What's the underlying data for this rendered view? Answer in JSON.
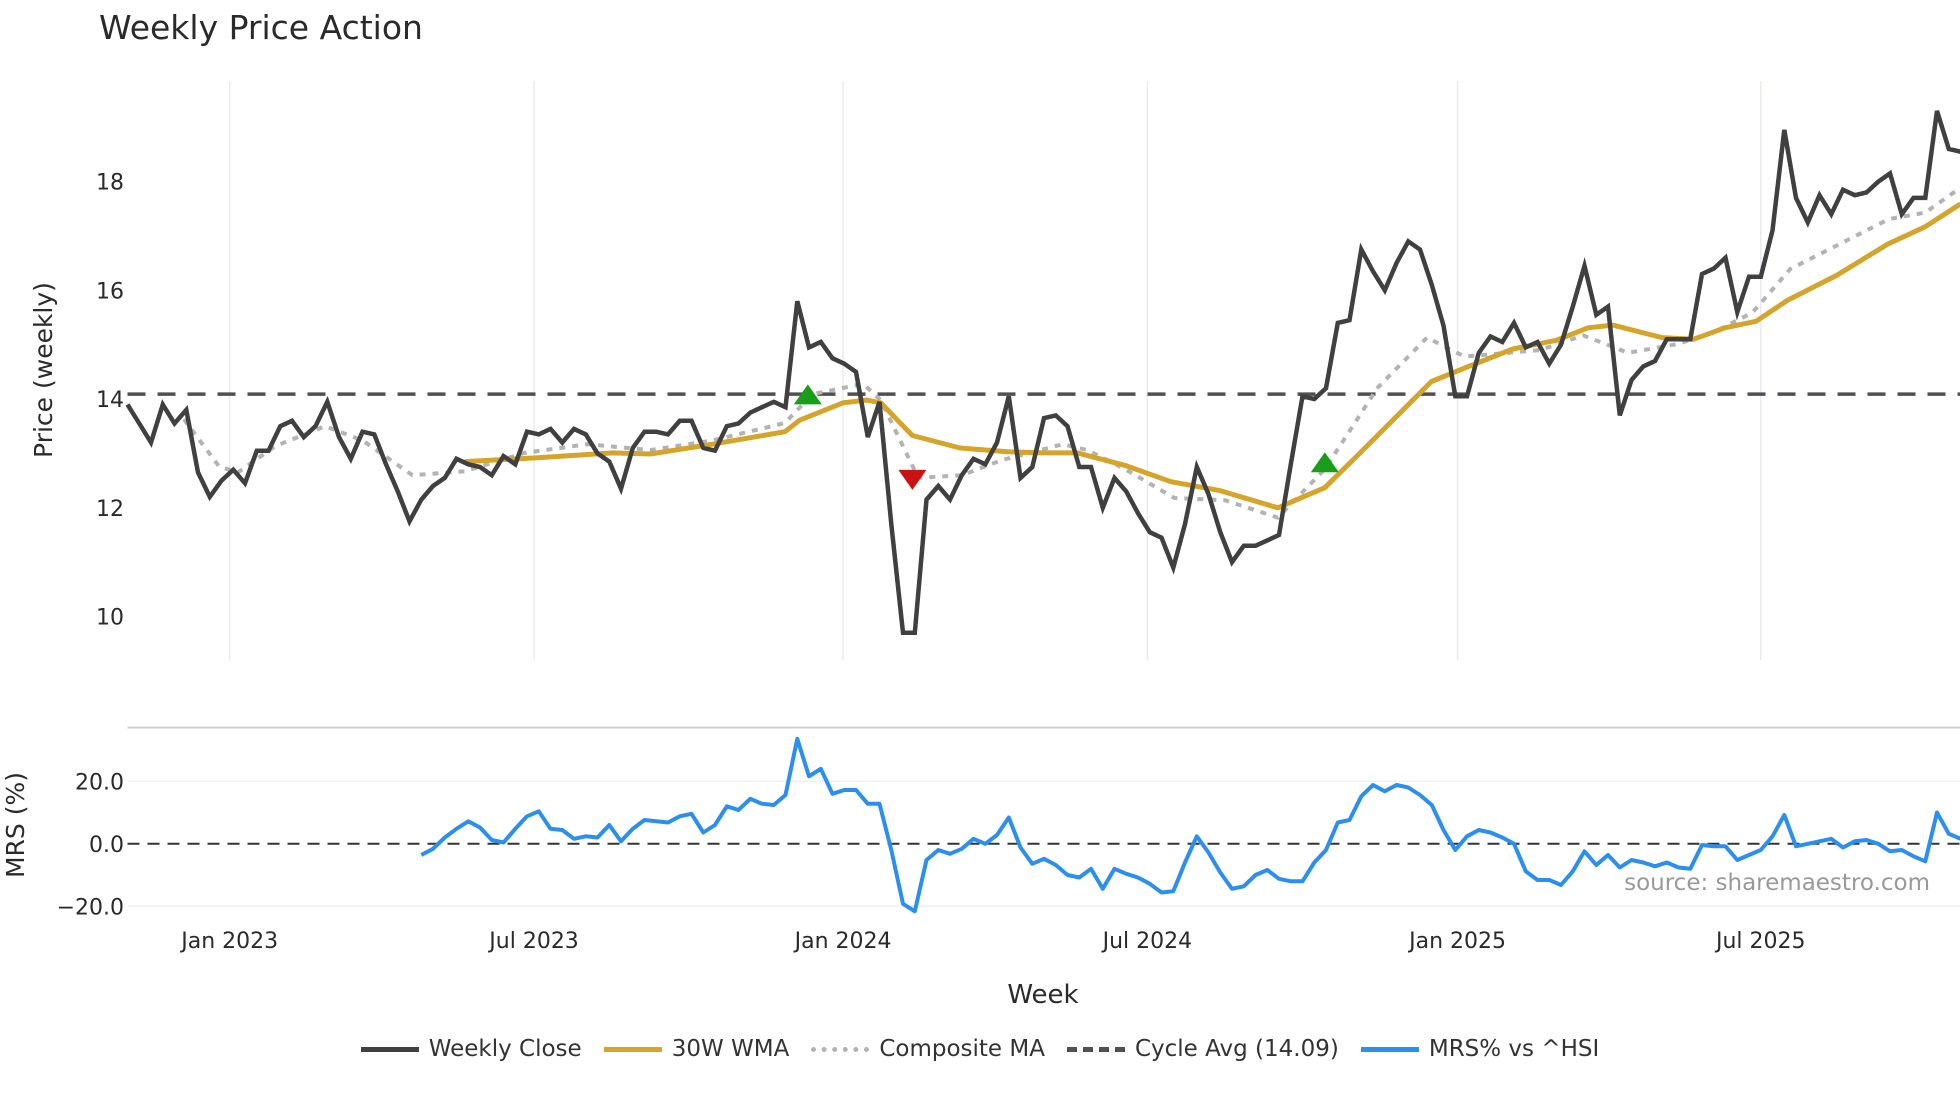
{
  "chart_data": {
    "type": "line",
    "title": "Weekly Price Action",
    "xlabel": "Week",
    "price_panel": {
      "ylabel": "Price (weekly)",
      "ylim": [
        9.2,
        19.85
      ],
      "yticks": [
        10,
        12,
        14,
        16,
        18
      ],
      "cycle_avg": 14.09,
      "weekly_close": [
        13.9,
        13.55,
        13.2,
        13.9,
        13.55,
        13.8,
        12.65,
        12.2,
        12.5,
        12.7,
        12.45,
        13.05,
        13.05,
        13.5,
        13.6,
        13.3,
        13.5,
        13.95,
        13.3,
        12.9,
        13.4,
        13.35,
        12.8,
        12.3,
        11.75,
        12.15,
        12.4,
        12.55,
        12.9,
        12.8,
        12.75,
        12.6,
        12.95,
        12.8,
        13.4,
        13.35,
        13.45,
        13.2,
        13.45,
        13.35,
        13.0,
        12.85,
        12.35,
        13.1,
        13.4,
        13.4,
        13.35,
        13.6,
        13.6,
        13.1,
        13.05,
        13.5,
        13.55,
        13.75,
        13.85,
        13.95,
        13.85,
        15.8,
        14.95,
        15.05,
        14.75,
        14.65,
        14.5,
        13.3,
        13.95,
        11.7,
        9.7,
        9.7,
        12.15,
        12.4,
        12.15,
        12.6,
        12.9,
        12.8,
        13.2,
        14.05,
        12.55,
        12.75,
        13.65,
        13.7,
        13.5,
        12.75,
        12.75,
        12.0,
        12.55,
        12.3,
        11.9,
        11.55,
        11.45,
        10.9,
        11.7,
        12.75,
        12.25,
        11.55,
        11.0,
        11.3,
        11.3,
        11.4,
        11.5,
        12.8,
        14.05,
        14.0,
        14.2,
        15.4,
        15.45,
        16.75,
        16.35,
        16.0,
        16.5,
        16.9,
        16.75,
        16.1,
        15.35,
        14.05,
        14.05,
        14.85,
        15.15,
        15.05,
        15.4,
        14.95,
        15.05,
        14.65,
        15.0,
        15.7,
        16.45,
        15.55,
        15.7,
        13.7,
        14.35,
        14.6,
        14.7,
        15.1,
        15.1,
        15.1,
        16.3,
        16.4,
        16.6,
        15.6,
        16.25,
        16.25,
        17.1,
        18.95,
        17.7,
        17.25,
        17.75,
        17.4,
        17.85,
        17.75,
        17.8,
        18.0,
        18.15,
        17.4,
        17.7,
        17.7,
        19.3,
        18.6,
        18.55
      ],
      "wma_30w": [
        [
          28.7,
          12.85
        ],
        [
          34.9,
          12.92
        ],
        [
          41.3,
          13.01
        ],
        [
          44.5,
          12.99
        ],
        [
          49.8,
          13.17
        ],
        [
          55.96,
          13.4
        ],
        [
          57.2,
          13.61
        ],
        [
          60.9,
          13.93
        ],
        [
          62.9,
          13.98
        ],
        [
          64.1,
          13.93
        ],
        [
          66.8,
          13.33
        ],
        [
          70.85,
          13.1
        ],
        [
          74.9,
          13.03
        ],
        [
          77.9,
          13.01
        ],
        [
          80.85,
          13.01
        ],
        [
          84.9,
          12.78
        ],
        [
          88.8,
          12.48
        ],
        [
          92.9,
          12.32
        ],
        [
          97.9,
          12.0
        ],
        [
          101.9,
          12.37
        ],
        [
          104.9,
          13.01
        ],
        [
          110.96,
          14.32
        ],
        [
          113.8,
          14.57
        ],
        [
          117.9,
          14.92
        ],
        [
          121.6,
          15.08
        ],
        [
          124.3,
          15.31
        ],
        [
          126.4,
          15.36
        ],
        [
          130.6,
          15.13
        ],
        [
          133.3,
          15.1
        ],
        [
          135.96,
          15.31
        ],
        [
          138.6,
          15.43
        ],
        [
          141.3,
          15.82
        ],
        [
          145.5,
          16.28
        ],
        [
          149.8,
          16.85
        ],
        [
          153.0,
          17.17
        ],
        [
          156.0,
          17.59
        ]
      ],
      "composite_ma": [
        [
          4.8,
          13.63
        ],
        [
          7.8,
          12.76
        ],
        [
          9.4,
          12.65
        ],
        [
          12.55,
          13.13
        ],
        [
          16.8,
          13.5
        ],
        [
          20.0,
          13.24
        ],
        [
          24.25,
          12.6
        ],
        [
          28.7,
          12.67
        ],
        [
          33.8,
          13.01
        ],
        [
          39.15,
          13.17
        ],
        [
          44.5,
          13.06
        ],
        [
          49.8,
          13.24
        ],
        [
          55.96,
          13.56
        ],
        [
          58.3,
          14.09
        ],
        [
          62.6,
          14.28
        ],
        [
          64.1,
          13.98
        ],
        [
          67.3,
          12.55
        ],
        [
          71.05,
          12.6
        ],
        [
          74.3,
          12.87
        ],
        [
          79.6,
          13.17
        ],
        [
          81.7,
          13.06
        ],
        [
          84.9,
          12.71
        ],
        [
          89.1,
          12.18
        ],
        [
          93.4,
          12.14
        ],
        [
          97.9,
          11.82
        ],
        [
          101.9,
          12.71
        ],
        [
          106.4,
          14.21
        ],
        [
          110.6,
          15.13
        ],
        [
          113.8,
          14.78
        ],
        [
          120.2,
          14.9
        ],
        [
          123.9,
          15.17
        ],
        [
          127.7,
          14.85
        ],
        [
          131.9,
          15.01
        ],
        [
          135.1,
          15.24
        ],
        [
          138.3,
          15.59
        ],
        [
          141.5,
          16.39
        ],
        [
          145.7,
          16.85
        ],
        [
          149.9,
          17.31
        ],
        [
          153.0,
          17.43
        ],
        [
          156.0,
          17.89
        ]
      ],
      "signals": [
        {
          "type": "buy",
          "week": 57.9,
          "value": 14.05
        },
        {
          "type": "sell",
          "week": 66.8,
          "value": 12.55
        },
        {
          "type": "buy",
          "week": 101.9,
          "value": 12.8
        }
      ]
    },
    "mrs_panel": {
      "ylabel": "MRS (%)",
      "yticks": [
        20,
        0,
        -20
      ],
      "ytick_labels": [
        "20.0",
        "0.0",
        "−20.0"
      ],
      "start_week": 25,
      "values": [
        -3.6,
        -1.6,
        2,
        4.8,
        7.2,
        5.2,
        1.2,
        0.4,
        4.8,
        8.8,
        10.4,
        4.8,
        4.4,
        1.6,
        2.4,
        2,
        6,
        0.8,
        4.8,
        7.6,
        7.2,
        6.8,
        8.8,
        9.6,
        3.6,
        6,
        12,
        10.8,
        14.4,
        12.8,
        12.4,
        15.6,
        33.6,
        21.6,
        24,
        16,
        17.2,
        17.2,
        12.8,
        12.8,
        -2,
        -19.2,
        -21.6,
        -5.2,
        -2,
        -3.2,
        -1.6,
        1.6,
        0,
        2.8,
        8.4,
        -1.2,
        -6.4,
        -4.8,
        -6.8,
        -10,
        -10.8,
        -8,
        -14.4,
        -8,
        -9.6,
        -10.8,
        -12.8,
        -15.6,
        -15.2,
        -6,
        2.4,
        -2.8,
        -9.2,
        -14.4,
        -13.6,
        -10,
        -8.4,
        -11.2,
        -12,
        -12,
        -6,
        -2,
        6.8,
        7.6,
        15.2,
        18.8,
        16.8,
        18.8,
        18,
        15.6,
        12.4,
        4.4,
        -2,
        2.4,
        4.4,
        3.6,
        2,
        0,
        -8.8,
        -11.6,
        -11.6,
        -13.2,
        -8.8,
        -2.4,
        -6.8,
        -3.6,
        -7.6,
        -5.2,
        -6,
        -7.2,
        -6,
        -7.6,
        -8,
        -0.4,
        -0.8,
        -0.8,
        -5.2,
        -3.6,
        -2,
        2.4,
        9.2,
        -0.8,
        0,
        0.8,
        1.6,
        -1.2,
        0.8,
        1.2,
        0,
        -2.4,
        -2,
        -4,
        -5.6,
        10,
        3.2,
        1.6
      ]
    },
    "xticks": [
      {
        "label": "Jan 2023",
        "week": 8.7
      },
      {
        "label": "Jul 2023",
        "week": 34.6
      },
      {
        "label": "Jan 2024",
        "week": 60.9
      },
      {
        "label": "Jul 2024",
        "week": 86.8
      },
      {
        "label": "Jan 2025",
        "week": 113.2
      },
      {
        "label": "Jul 2025",
        "week": 139.0
      }
    ],
    "legend": [
      {
        "label": "Weekly Close",
        "color": "#404040",
        "style": "solid"
      },
      {
        "label": "30W WMA",
        "color": "#d4a52a",
        "style": "solid"
      },
      {
        "label": "Composite MA",
        "color": "#b3b3b3",
        "style": "dotted"
      },
      {
        "label": "Cycle Avg (14.09)",
        "color": "#505050",
        "style": "dashed"
      },
      {
        "label": "MRS% vs ^HSI",
        "color": "#2b8ff0",
        "style": "solid"
      }
    ],
    "source": "source: sharemaestro.com",
    "colors": {
      "close": "#404040",
      "wma": "#d4a52a",
      "composite": "#b3b3b3",
      "cycle": "#505050",
      "mrs": "#2b8ff0",
      "buy": "#1a9e1a",
      "sell": "#cc1111"
    }
  }
}
